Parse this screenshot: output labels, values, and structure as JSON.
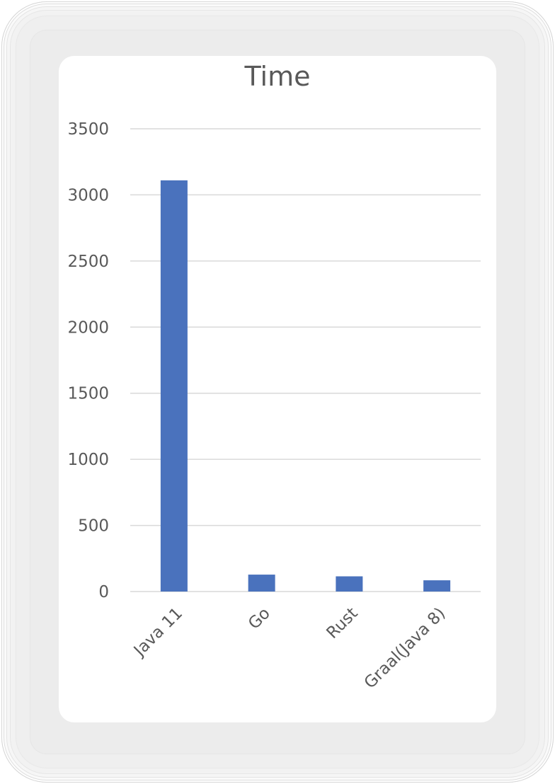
{
  "chart_data": {
    "type": "bar",
    "title": "Time",
    "categories": [
      "Java 11",
      "Go",
      "Rust",
      "Graal(Java 8)"
    ],
    "values": [
      3110,
      128,
      115,
      85
    ],
    "y_ticks": [
      "0",
      "500",
      "1000",
      "1500",
      "2000",
      "2500",
      "3000",
      "3500"
    ],
    "ylim": [
      0,
      3500
    ],
    "grid": true,
    "legend": "none",
    "colors": {
      "bar": "#4a72bd",
      "gridline": "#d9d9d9",
      "text": "#595959"
    }
  }
}
